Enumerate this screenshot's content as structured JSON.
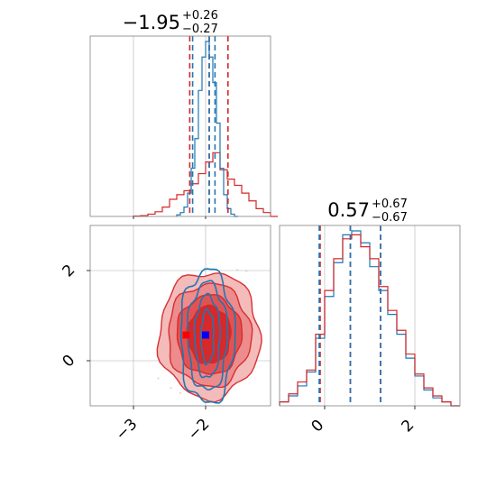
{
  "colors": {
    "red": "#d62728",
    "blue": "#1f77b4",
    "grid": "#b0b0b0",
    "axis": "#808080",
    "contour_fill_red": [
      "#f4b8b8",
      "#ec8a8a",
      "#e05050",
      "#d62728"
    ]
  },
  "chart_data": {
    "type": "corner",
    "parameters": [
      {
        "title_value": "-1.95",
        "title_plus": "+0.26",
        "title_minus": "-0.27",
        "range": [
          -3.6,
          -1.1
        ],
        "ticks": [
          -3,
          -2
        ],
        "tick_labels": [
          "-3",
          "-2"
        ]
      },
      {
        "title_value": "0.57",
        "title_plus": "+0.67",
        "title_minus": "-0.67",
        "range": [
          -1.0,
          3.0
        ],
        "ticks": [
          0,
          2
        ],
        "tick_labels": [
          "0",
          "2"
        ]
      }
    ],
    "grid": true,
    "series": [
      {
        "color": "#d62728",
        "quantiles_param1": [
          -2.22,
          -1.95,
          -1.69
        ],
        "quantiles_param2": [
          -0.1,
          0.57,
          1.24
        ],
        "marker": [
          -2.27,
          0.57
        ],
        "hist1": {
          "bins": [
            -3.0,
            -2.9,
            -2.8,
            -2.7,
            -2.6,
            -2.5,
            -2.4,
            -2.3,
            -2.2,
            -2.1,
            -2.0,
            -1.9,
            -1.8,
            -1.7,
            -1.6,
            -1.5,
            -1.4,
            -1.3,
            -1.2,
            -1.1
          ],
          "heights": [
            0.005,
            0.01,
            0.03,
            0.06,
            0.12,
            0.22,
            0.28,
            0.33,
            0.42,
            0.55,
            0.7,
            0.82,
            0.6,
            0.48,
            0.4,
            0.3,
            0.2,
            0.1,
            0.05,
            0.0
          ]
        },
        "hist2": {
          "bins": [
            -1.0,
            -0.8,
            -0.6,
            -0.4,
            -0.2,
            0.0,
            0.2,
            0.4,
            0.6,
            0.8,
            1.0,
            1.2,
            1.4,
            1.6,
            1.8,
            2.0,
            2.2,
            2.4,
            2.6,
            2.8,
            3.0
          ],
          "heights": [
            0.02,
            0.06,
            0.12,
            0.18,
            0.36,
            0.58,
            0.74,
            0.84,
            0.86,
            0.8,
            0.74,
            0.6,
            0.48,
            0.38,
            0.26,
            0.16,
            0.09,
            0.05,
            0.02,
            0.0
          ]
        }
      },
      {
        "color": "#1f77b4",
        "quantiles_param1": [
          -2.18,
          -1.95,
          -1.87
        ],
        "quantiles_param2": [
          -0.12,
          0.57,
          1.24
        ],
        "marker": [
          -2.0,
          0.57
        ],
        "hist1": {
          "bins": [
            -2.4,
            -2.35,
            -2.3,
            -2.25,
            -2.2,
            -2.15,
            -2.1,
            -2.05,
            -2.0,
            -1.95,
            -1.9,
            -1.85,
            -1.8,
            -1.75,
            -1.7,
            -1.65,
            -1.6
          ],
          "heights": [
            0.02,
            0.05,
            0.12,
            0.3,
            0.62,
            1.0,
            1.62,
            2.05,
            2.25,
            2.05,
            1.72,
            1.2,
            0.62,
            0.28,
            0.1,
            0.03,
            0.0
          ]
        },
        "hist2": {
          "bins": [
            -1.0,
            -0.8,
            -0.6,
            -0.4,
            -0.2,
            0.0,
            0.2,
            0.4,
            0.6,
            0.8,
            1.0,
            1.2,
            1.4,
            1.6,
            1.8,
            2.0,
            2.2,
            2.4,
            2.6,
            2.8,
            3.0
          ],
          "heights": [
            0.02,
            0.05,
            0.1,
            0.17,
            0.34,
            0.55,
            0.72,
            0.86,
            0.88,
            0.82,
            0.7,
            0.58,
            0.46,
            0.36,
            0.24,
            0.15,
            0.08,
            0.04,
            0.02,
            0.0
          ]
        }
      }
    ]
  }
}
